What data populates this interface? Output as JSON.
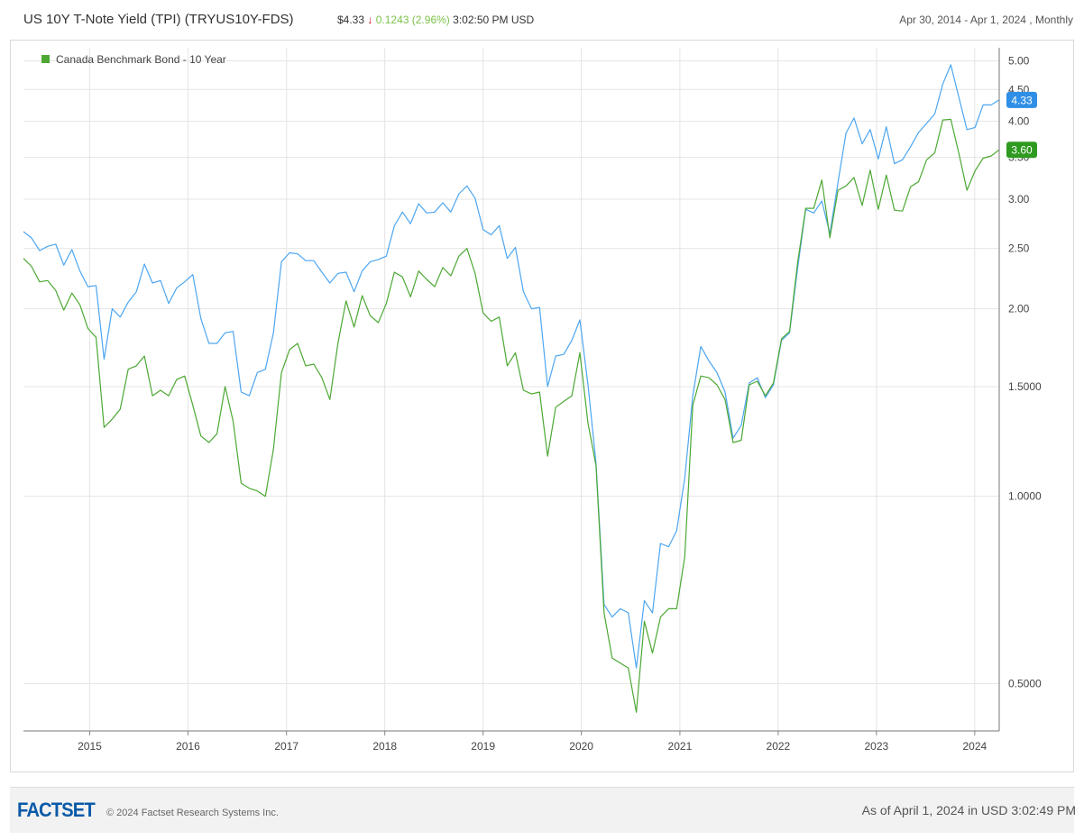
{
  "header": {
    "title": "US 10Y T-Note Yield (TPI) (TRYUS10Y-FDS)",
    "price": "$4.33",
    "arrow": "↓",
    "change": "0.1243",
    "change_pct": "(2.96%)",
    "time": "3:02:50 PM USD",
    "range": "Apr 30, 2014 - Apr 1, 2024 , Monthly"
  },
  "footer": {
    "logo": "FACTSET",
    "copyright": "© 2024 Factset Research Systems Inc.",
    "as_of": "As of April 1, 2024 in USD 3:02:49 PM"
  },
  "colors": {
    "us_line": "#4da6f0",
    "canada_line": "#4ca833",
    "us_badge": "#2f8fe6",
    "canada_badge": "#2e9a1f"
  },
  "chart_data": {
    "type": "line",
    "y_scale": "log",
    "ylim": [
      0.42,
      5.25
    ],
    "x_start": "2014-04-30",
    "x_end": "2024-04-01",
    "frequency": "Monthly",
    "grid": true,
    "legend_position": "top-left",
    "x_ticks": [
      "2015",
      "2016",
      "2017",
      "2018",
      "2019",
      "2020",
      "2021",
      "2022",
      "2023",
      "2024"
    ],
    "y_ticks": [
      {
        "value": 5.0,
        "label": "5.00"
      },
      {
        "value": 4.5,
        "label": "4.50"
      },
      {
        "value": 4.0,
        "label": "4.00"
      },
      {
        "value": 3.5,
        "label": "3.50"
      },
      {
        "value": 3.0,
        "label": "3.00"
      },
      {
        "value": 2.5,
        "label": "2.50"
      },
      {
        "value": 2.0,
        "label": "2.00"
      },
      {
        "value": 1.5,
        "label": "1.5000"
      },
      {
        "value": 1.0,
        "label": "1.0000"
      },
      {
        "value": 0.5,
        "label": "0.5000"
      }
    ],
    "series": [
      {
        "name": "",
        "color_key": "us_line",
        "last_label": "4.33",
        "values": [
          2.66,
          2.6,
          2.48,
          2.52,
          2.54,
          2.35,
          2.49,
          2.3,
          2.17,
          2.18,
          1.66,
          2.0,
          1.94,
          2.05,
          2.13,
          2.36,
          2.2,
          2.22,
          2.04,
          2.16,
          2.21,
          2.27,
          1.93,
          1.76,
          1.76,
          1.83,
          1.84,
          1.47,
          1.45,
          1.58,
          1.6,
          1.83,
          2.38,
          2.46,
          2.45,
          2.39,
          2.39,
          2.29,
          2.2,
          2.28,
          2.29,
          2.13,
          2.3,
          2.38,
          2.4,
          2.43,
          2.72,
          2.86,
          2.74,
          2.95,
          2.85,
          2.86,
          2.96,
          2.86,
          3.06,
          3.15,
          3.01,
          2.68,
          2.63,
          2.72,
          2.41,
          2.51,
          2.13,
          2.0,
          2.01,
          1.5,
          1.68,
          1.69,
          1.78,
          1.92,
          1.51,
          1.13,
          0.67,
          0.64,
          0.66,
          0.65,
          0.53,
          0.68,
          0.65,
          0.84,
          0.83,
          0.88,
          1.07,
          1.45,
          1.74,
          1.65,
          1.58,
          1.47,
          1.24,
          1.3,
          1.52,
          1.55,
          1.44,
          1.51,
          1.78,
          1.83,
          2.32,
          2.89,
          2.85,
          2.98,
          2.64,
          3.19,
          3.83,
          4.05,
          3.68,
          3.88,
          3.48,
          3.92,
          3.42,
          3.47,
          3.64,
          3.84,
          3.97,
          4.11,
          4.59,
          4.93,
          4.37,
          3.88,
          3.91,
          4.25,
          4.25,
          4.33
        ]
      },
      {
        "name": "Canada Benchmark Bond - 10 Year",
        "color_key": "canada_line",
        "last_label": "3.60",
        "values": [
          2.41,
          2.34,
          2.21,
          2.22,
          2.14,
          1.99,
          2.12,
          2.03,
          1.86,
          1.8,
          1.29,
          1.33,
          1.38,
          1.6,
          1.62,
          1.68,
          1.45,
          1.48,
          1.45,
          1.54,
          1.56,
          1.4,
          1.25,
          1.22,
          1.26,
          1.5,
          1.32,
          1.05,
          1.03,
          1.02,
          1.0,
          1.19,
          1.58,
          1.72,
          1.76,
          1.62,
          1.63,
          1.55,
          1.43,
          1.76,
          2.06,
          1.87,
          2.1,
          1.95,
          1.9,
          2.04,
          2.29,
          2.25,
          2.09,
          2.3,
          2.23,
          2.17,
          2.33,
          2.26,
          2.43,
          2.5,
          2.28,
          1.97,
          1.91,
          1.94,
          1.62,
          1.7,
          1.48,
          1.46,
          1.47,
          1.16,
          1.39,
          1.42,
          1.45,
          1.7,
          1.31,
          1.12,
          0.65,
          0.55,
          0.54,
          0.53,
          0.45,
          0.63,
          0.56,
          0.64,
          0.66,
          0.66,
          0.8,
          1.4,
          1.56,
          1.55,
          1.51,
          1.43,
          1.22,
          1.23,
          1.51,
          1.53,
          1.45,
          1.52,
          1.79,
          1.84,
          2.37,
          2.9,
          2.9,
          3.22,
          2.6,
          3.1,
          3.15,
          3.25,
          2.93,
          3.34,
          2.89,
          3.28,
          2.88,
          2.87,
          3.14,
          3.2,
          3.47,
          3.56,
          4.02,
          4.03,
          3.55,
          3.1,
          3.33,
          3.49,
          3.52,
          3.6
        ]
      }
    ]
  }
}
